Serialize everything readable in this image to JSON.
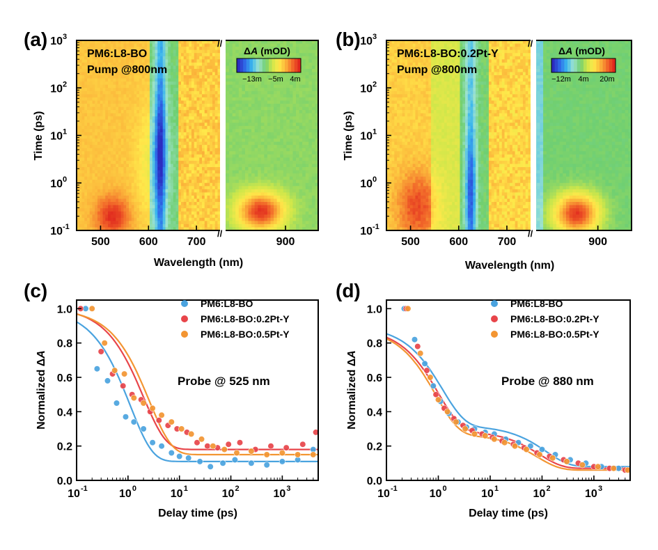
{
  "colors": {
    "scale": [
      "#2c2cc0",
      "#2f6ae8",
      "#39b6ee",
      "#9fe3d0",
      "#6fcf72",
      "#cfe74a",
      "#ffe84a",
      "#fbb33a",
      "#f26a2a",
      "#e0281e"
    ],
    "series_blue": "#4aa3df",
    "series_red": "#e8454a",
    "series_orange": "#f39532"
  },
  "chart_data": [
    {
      "panel": "(a)",
      "type": "heatmap",
      "sample": "PM6:L8-BO",
      "pump": "Pump @800nm",
      "xlabel": "Wavelength (nm)",
      "ylabel": "Time (ps)",
      "x_ticks": [
        "500",
        "600",
        "700",
        "900"
      ],
      "y_ticks": [
        "10",
        "10",
        "10",
        "10",
        "10"
      ],
      "y_tick_exponents": [
        "-1",
        "0",
        "1",
        "2",
        "3"
      ],
      "x_ranges": [
        [
          450,
          755
        ],
        [
          785,
          960
        ]
      ],
      "ylim": [
        0.1,
        1000
      ],
      "y_scale": "log",
      "colorbar": {
        "label_delta": "Δ",
        "label_A": "A",
        "label_unit": "(mOD)",
        "ticks": [
          "−13m",
          "−5m",
          "4m"
        ]
      }
    },
    {
      "panel": "(b)",
      "type": "heatmap",
      "sample": "PM6:L8-BO:0.2Pt-Y",
      "pump": "Pump @800nm",
      "xlabel": "Wavelength (nm)",
      "ylabel": "Time (ps)",
      "x_ticks": [
        "500",
        "600",
        "700",
        "900"
      ],
      "y_ticks": [
        "10",
        "10",
        "10",
        "10",
        "10"
      ],
      "y_tick_exponents": [
        "-1",
        "0",
        "1",
        "2",
        "3"
      ],
      "x_ranges": [
        [
          450,
          755
        ],
        [
          785,
          960
        ]
      ],
      "ylim": [
        0.1,
        1000
      ],
      "y_scale": "log",
      "colorbar": {
        "label_delta": "Δ",
        "label_A": "A",
        "label_unit": "(mOD)",
        "ticks": [
          "−12m",
          "4m",
          "20m"
        ]
      }
    },
    {
      "panel": "(c)",
      "type": "scatter",
      "annotation": "Probe @ 525 nm",
      "xlabel": "Delay time (ps)",
      "ylabel_prefix": "Normalized Δ",
      "ylabel_italic": "A",
      "x_scale": "log",
      "xlim": [
        0.1,
        5000
      ],
      "ylim": [
        0,
        1.05
      ],
      "x_ticks": [
        "10",
        "10",
        "10",
        "10",
        "10"
      ],
      "x_tick_exponents": [
        "-1",
        "0",
        "1",
        "2",
        "3"
      ],
      "y_ticks": [
        "0.0",
        "0.2",
        "0.4",
        "0.6",
        "0.8",
        "1.0"
      ],
      "legend_position": "top-right",
      "series": [
        {
          "name": "PM6:L8-BO",
          "color": "#4aa3df",
          "x": [
            0.15,
            0.25,
            0.4,
            0.6,
            0.9,
            1.3,
            2,
            3,
            4.5,
            7,
            10,
            15,
            25,
            40,
            70,
            120,
            250,
            500,
            1000,
            2000,
            4000
          ],
          "y": [
            1.0,
            0.65,
            0.58,
            0.45,
            0.37,
            0.34,
            0.3,
            0.22,
            0.2,
            0.16,
            0.14,
            0.13,
            0.11,
            0.08,
            0.1,
            0.12,
            0.1,
            0.09,
            0.11,
            0.12,
            0.18
          ],
          "fit_A": 0.89,
          "fit_tau": 1.1,
          "fit_c": 0.11
        },
        {
          "name": "PM6:L8-BO:0.2Pt-Y",
          "color": "#e8454a",
          "x": [
            0.12,
            0.3,
            0.5,
            0.8,
            1.2,
            1.8,
            2.7,
            4,
            6,
            9,
            14,
            22,
            35,
            55,
            90,
            150,
            300,
            600,
            1200,
            2500,
            4500
          ],
          "y": [
            1.0,
            0.75,
            0.62,
            0.55,
            0.5,
            0.47,
            0.4,
            0.35,
            0.32,
            0.3,
            0.28,
            0.22,
            0.2,
            0.19,
            0.21,
            0.22,
            0.18,
            0.2,
            0.19,
            0.21,
            0.28
          ],
          "fit_A": 0.83,
          "fit_tau": 2.0,
          "fit_c": 0.18
        },
        {
          "name": "PM6:L8-BO:0.5Pt-Y",
          "color": "#f39532",
          "x": [
            0.2,
            0.35,
            0.55,
            0.85,
            1.3,
            2,
            3,
            4.5,
            7,
            11,
            17,
            27,
            45,
            75,
            130,
            250,
            500,
            1000,
            2000,
            4000
          ],
          "y": [
            1.0,
            0.8,
            0.64,
            0.62,
            0.48,
            0.45,
            0.42,
            0.38,
            0.34,
            0.3,
            0.27,
            0.24,
            0.2,
            0.18,
            0.16,
            0.17,
            0.15,
            0.16,
            0.15,
            0.15
          ],
          "fit_A": 0.85,
          "fit_tau": 2.6,
          "fit_c": 0.15
        }
      ]
    },
    {
      "panel": "(d)",
      "type": "scatter",
      "annotation": "Probe @ 880 nm",
      "xlabel": "Delay time (ps)",
      "ylabel_prefix": "Normalized Δ",
      "ylabel_italic": "A",
      "x_scale": "log",
      "xlim": [
        0.1,
        5000
      ],
      "ylim": [
        0,
        1.05
      ],
      "x_ticks": [
        "10",
        "10",
        "10",
        "10",
        "10"
      ],
      "x_tick_exponents": [
        "-1",
        "0",
        "1",
        "2",
        "3"
      ],
      "y_ticks": [
        "0.0",
        "0.2",
        "0.4",
        "0.6",
        "0.8",
        "1.0"
      ],
      "legend_position": "top-right",
      "series": [
        {
          "name": "PM6:L8-BO",
          "color": "#4aa3df",
          "x": [
            0.22,
            0.35,
            0.55,
            0.8,
            1.1,
            1.6,
            2.4,
            3.5,
            5,
            8,
            12,
            20,
            35,
            60,
            100,
            180,
            350,
            700,
            1400,
            3000
          ],
          "y": [
            1.0,
            0.82,
            0.68,
            0.55,
            0.46,
            0.39,
            0.34,
            0.31,
            0.3,
            0.28,
            0.27,
            0.24,
            0.22,
            0.2,
            0.18,
            0.15,
            0.12,
            0.1,
            0.08,
            0.07
          ],
          "fit_A1": 0.58,
          "fit_tau1": 1.2,
          "fit_A2": 0.24,
          "fit_tau2": 120,
          "fit_c": 0.08
        },
        {
          "name": "PM6:L8-BO:0.2Pt-Y",
          "color": "#e8454a",
          "x": [
            0.24,
            0.4,
            0.6,
            0.9,
            1.3,
            2,
            3,
            4.5,
            7,
            11,
            17,
            28,
            45,
            80,
            140,
            260,
            500,
            1000,
            2000,
            4000
          ],
          "y": [
            1.0,
            0.78,
            0.64,
            0.5,
            0.42,
            0.36,
            0.32,
            0.29,
            0.27,
            0.25,
            0.23,
            0.21,
            0.19,
            0.16,
            0.14,
            0.12,
            0.1,
            0.08,
            0.07,
            0.06
          ],
          "fit_A1": 0.6,
          "fit_tau1": 1.0,
          "fit_A2": 0.22,
          "fit_tau2": 90,
          "fit_c": 0.07
        },
        {
          "name": "PM6:L8-BO:0.5Pt-Y",
          "color": "#f39532",
          "x": [
            0.26,
            0.45,
            0.7,
            1.0,
            1.5,
            2.2,
            3.3,
            5,
            8,
            12,
            19,
            30,
            50,
            90,
            160,
            300,
            600,
            1200,
            2400,
            4500
          ],
          "y": [
            1.0,
            0.74,
            0.6,
            0.47,
            0.4,
            0.34,
            0.3,
            0.27,
            0.26,
            0.24,
            0.22,
            0.2,
            0.18,
            0.15,
            0.13,
            0.11,
            0.09,
            0.08,
            0.07,
            0.06
          ],
          "fit_A1": 0.62,
          "fit_tau1": 0.9,
          "fit_A2": 0.21,
          "fit_tau2": 80,
          "fit_c": 0.06
        }
      ]
    }
  ]
}
